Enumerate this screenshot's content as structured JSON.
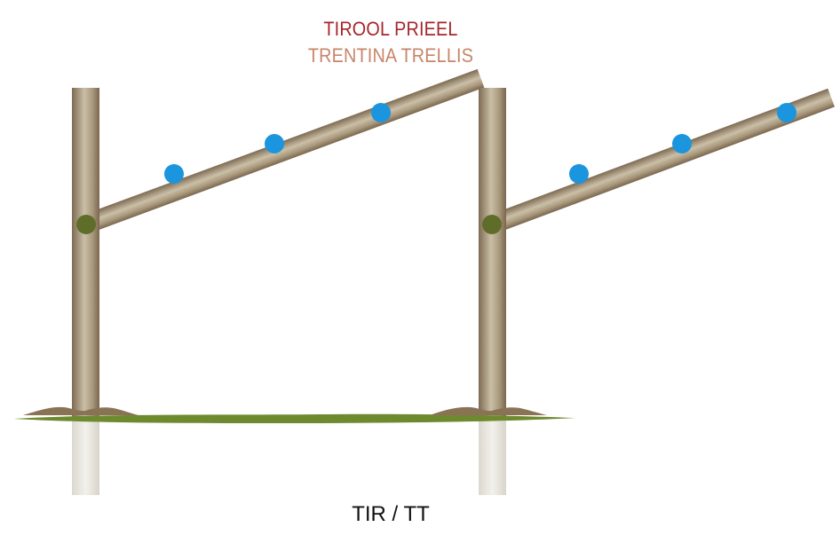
{
  "title_primary": "TIROOL PRIEEL",
  "title_secondary": "TRENTINA TRELLIS",
  "caption": "TIR / TT",
  "colors": {
    "title_primary": "#a5262b",
    "title_secondary": "#c8856a",
    "wood_dark": "#7d6a52",
    "wood_mid": "#a8987c",
    "wood_light": "#cbbfa7",
    "ground_grass": "#6e8a2f",
    "ground_soil": "#8a7355",
    "underground_post": "#e7e4dc",
    "wire": "#1b95de",
    "joint": "#5f6d2a"
  },
  "icons": {
    "wire_marker": "blue-dot",
    "joint_marker": "olive-dot"
  }
}
